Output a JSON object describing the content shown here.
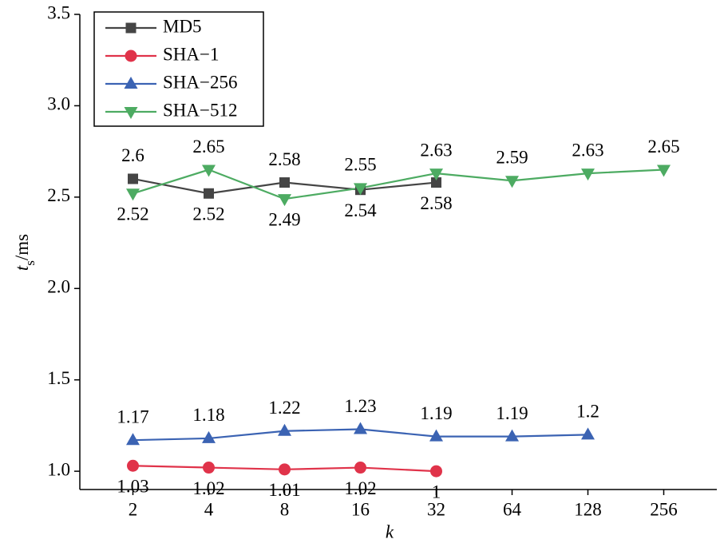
{
  "chart_data": {
    "type": "line",
    "xlabel": "k",
    "ylabel": {
      "main": "t",
      "sub": "s",
      "unit": "/ms"
    },
    "categories": [
      "2",
      "4",
      "8",
      "16",
      "32",
      "64",
      "128",
      "256"
    ],
    "ylim": [
      0.9,
      3.5
    ],
    "yticks": [
      {
        "value": 1,
        "label": "1.0"
      },
      1.5,
      {
        "value": 2,
        "label": "2.0"
      },
      2.5,
      {
        "value": 3,
        "label": "3.0"
      },
      3.5
    ],
    "legend": "upper left",
    "series": [
      {
        "name": "MD5",
        "color": "#454545",
        "marker": "square",
        "values": [
          2.6,
          2.52,
          2.58,
          2.54,
          2.58,
          null,
          null,
          null
        ]
      },
      {
        "name": "SHA−1",
        "color": "#e0334a",
        "marker": "circle",
        "values": [
          1.03,
          1.02,
          1.01,
          1.02,
          1,
          null,
          null,
          null
        ]
      },
      {
        "name": "SHA−256",
        "color": "#3b63b3",
        "marker": "triangle-up",
        "values": [
          1.17,
          1.18,
          1.22,
          1.23,
          1.19,
          1.19,
          1.2,
          null
        ]
      },
      {
        "name": "SHA−512",
        "color": "#4dab62",
        "marker": "triangle-down",
        "values": [
          2.52,
          2.65,
          2.49,
          2.55,
          2.63,
          2.59,
          2.63,
          2.65
        ]
      }
    ]
  }
}
